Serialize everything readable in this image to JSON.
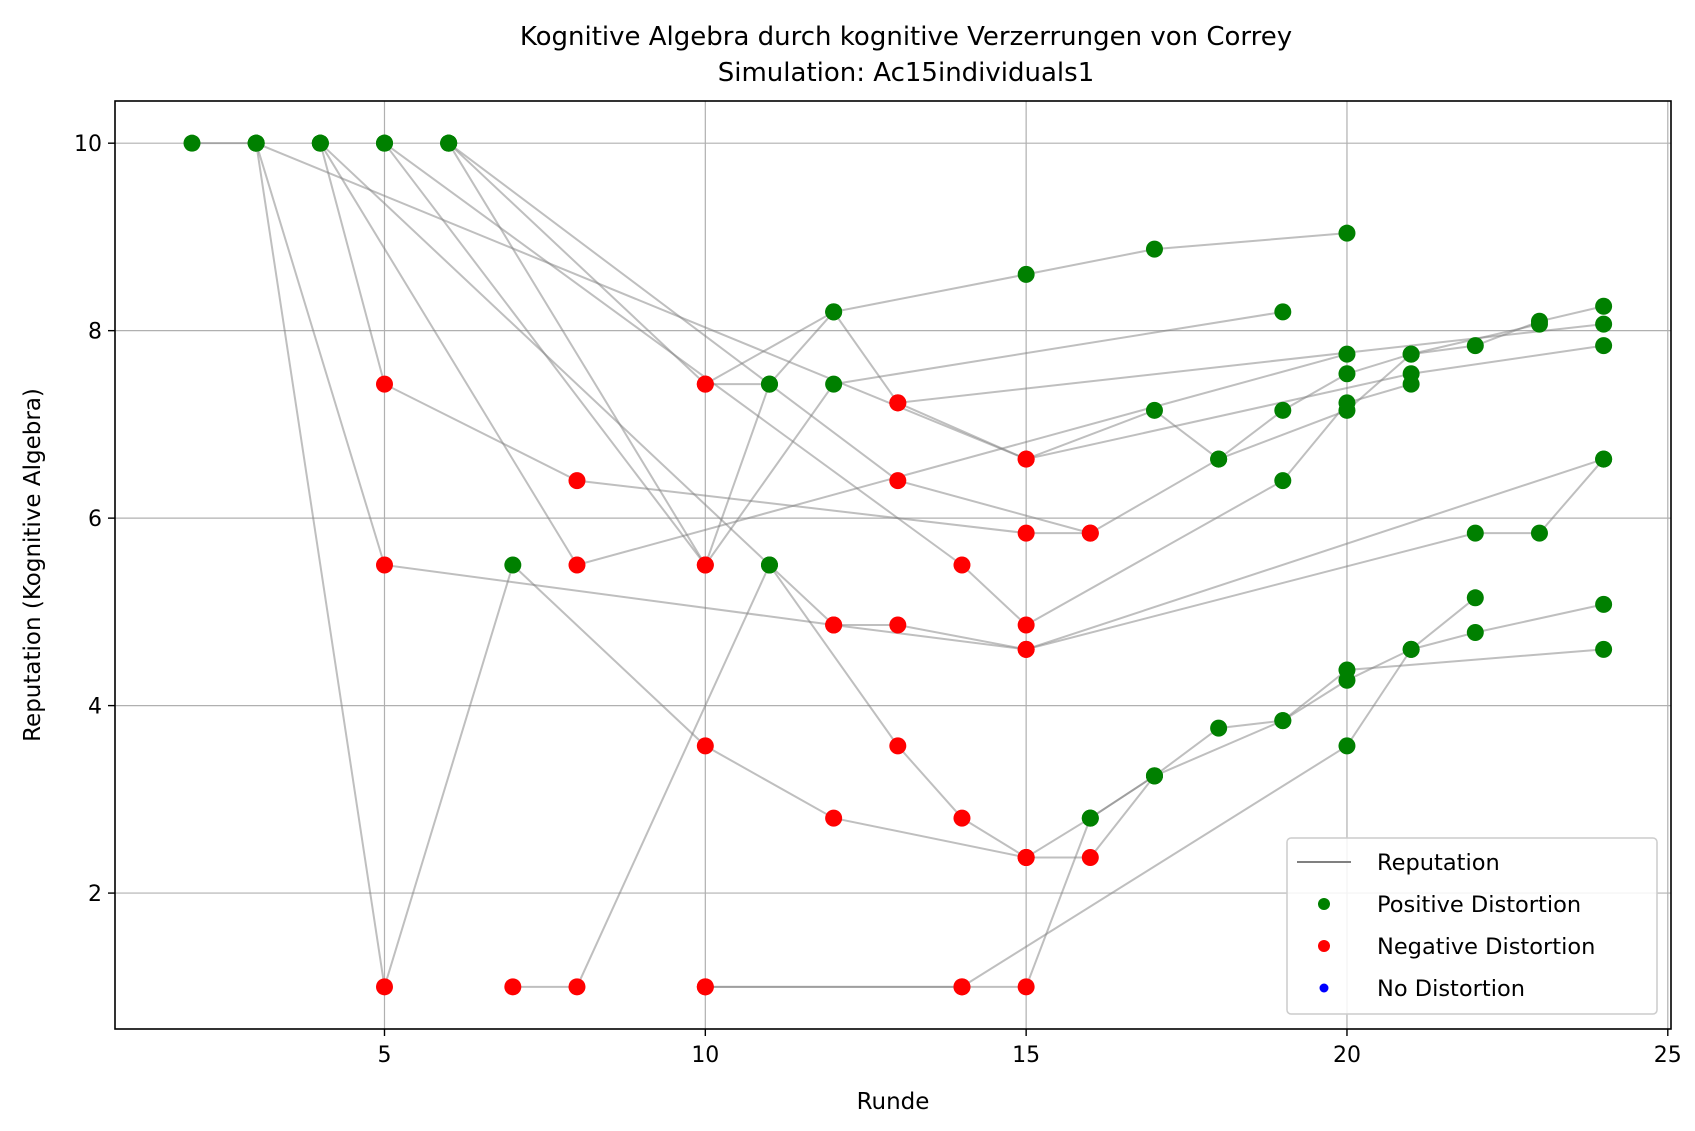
{
  "chart_data": {
    "type": "scatter",
    "title": "Kognitive Algebra durch kognitive Verzerrungen von Correy",
    "subtitle": "Simulation: Ac15individuals1",
    "xlabel": "Runde",
    "ylabel": "Reputation (Kognitive Algebra)",
    "xlim": [
      0.8,
      25.05
    ],
    "ylim": [
      0.55,
      10.45
    ],
    "xticks": [
      5,
      10,
      15,
      20,
      25
    ],
    "yticks": [
      2,
      4,
      6,
      8,
      10
    ],
    "grid": true,
    "legend_position": "lower right",
    "legend": [
      {
        "label": "Reputation",
        "kind": "line",
        "color": "#808080"
      },
      {
        "label": "Positive Distortion",
        "kind": "marker",
        "color": "#008000"
      },
      {
        "label": "Negative Distortion",
        "kind": "marker",
        "color": "#ff0000"
      },
      {
        "label": "No Distortion",
        "kind": "marker",
        "color": "#0000ff"
      }
    ],
    "colors": {
      "positive": "#008000",
      "negative": "#ff0000",
      "none": "#0000ff",
      "line": "#808080"
    },
    "series": [
      {
        "points": [
          {
            "x": 3,
            "y": 10,
            "d": "pos"
          },
          {
            "x": 5,
            "y": 1,
            "d": "neg"
          },
          {
            "x": 7,
            "y": 5.5,
            "d": "pos"
          },
          {
            "x": 10,
            "y": 3.57,
            "d": "neg"
          },
          {
            "x": 12,
            "y": 2.8,
            "d": "neg"
          },
          {
            "x": 15,
            "y": 2.38,
            "d": "neg"
          },
          {
            "x": 16,
            "y": 2.8,
            "d": "pos"
          },
          {
            "x": 17,
            "y": 3.25,
            "d": "pos"
          },
          {
            "x": 19,
            "y": 3.84,
            "d": "pos"
          },
          {
            "x": 20,
            "y": 4.27,
            "d": "pos"
          },
          {
            "x": 21,
            "y": 4.6,
            "d": "pos"
          },
          {
            "x": 22,
            "y": 4.78,
            "d": "pos"
          },
          {
            "x": 24,
            "y": 5.08,
            "d": "pos"
          }
        ]
      },
      {
        "points": [
          {
            "x": 2,
            "y": 10,
            "d": "pos"
          },
          {
            "x": 3,
            "y": 10,
            "d": "pos"
          },
          {
            "x": 5,
            "y": 5.5,
            "d": "neg"
          },
          {
            "x": 12,
            "y": 4.86,
            "d": "neg"
          },
          {
            "x": 15,
            "y": 4.6,
            "d": "neg"
          },
          {
            "x": 24,
            "y": 6.63,
            "d": "pos"
          }
        ]
      },
      {
        "points": [
          {
            "x": 4,
            "y": 10,
            "d": "pos"
          },
          {
            "x": 5,
            "y": 7.43,
            "d": "neg"
          },
          {
            "x": 8,
            "y": 6.4,
            "d": "neg"
          },
          {
            "x": 15,
            "y": 5.84,
            "d": "neg"
          },
          {
            "x": 16,
            "y": 5.84,
            "d": "neg"
          },
          {
            "x": 18,
            "y": 6.63,
            "d": "pos"
          },
          {
            "x": 19,
            "y": 7.15,
            "d": "pos"
          },
          {
            "x": 20,
            "y": 7.54,
            "d": "pos"
          },
          {
            "x": 21,
            "y": 7.75,
            "d": "pos"
          },
          {
            "x": 22,
            "y": 7.84,
            "d": "pos"
          },
          {
            "x": 23,
            "y": 8.1,
            "d": "pos"
          },
          {
            "x": 24,
            "y": 8.26,
            "d": "pos"
          }
        ]
      },
      {
        "points": [
          {
            "x": 4,
            "y": 10,
            "d": "pos"
          },
          {
            "x": 8,
            "y": 5.5,
            "d": "neg"
          },
          {
            "x": 20,
            "y": 7.75,
            "d": "pos"
          }
        ]
      },
      {
        "points": [
          {
            "x": 5,
            "y": 10,
            "d": "pos"
          },
          {
            "x": 10,
            "y": 5.5,
            "d": "neg"
          },
          {
            "x": 11,
            "y": 7.43,
            "d": "pos"
          },
          {
            "x": 12,
            "y": 8.2,
            "d": "pos"
          },
          {
            "x": 13,
            "y": 7.23,
            "d": "neg"
          },
          {
            "x": 24,
            "y": 8.07,
            "d": "pos"
          }
        ]
      },
      {
        "points": [
          {
            "x": 6,
            "y": 10,
            "d": "pos"
          },
          {
            "x": 10,
            "y": 7.43,
            "d": "neg"
          },
          {
            "x": 12,
            "y": 8.2,
            "d": "pos"
          },
          {
            "x": 15,
            "y": 8.6,
            "d": "pos"
          },
          {
            "x": 17,
            "y": 8.87,
            "d": "pos"
          },
          {
            "x": 20,
            "y": 9.04,
            "d": "pos"
          }
        ]
      },
      {
        "points": [
          {
            "x": 6,
            "y": 10,
            "d": "pos"
          },
          {
            "x": 10,
            "y": 5.5,
            "d": "neg"
          },
          {
            "x": 12,
            "y": 7.43,
            "d": "pos"
          },
          {
            "x": 19,
            "y": 8.2,
            "d": "pos"
          }
        ]
      },
      {
        "points": [
          {
            "x": 6,
            "y": 10,
            "d": "pos"
          },
          {
            "x": 13,
            "y": 6.4,
            "d": "neg"
          },
          {
            "x": 16,
            "y": 5.84,
            "d": "neg"
          }
        ]
      },
      {
        "points": [
          {
            "x": 3,
            "y": 10,
            "d": "pos"
          },
          {
            "x": 15,
            "y": 6.63,
            "d": "neg"
          },
          {
            "x": 21,
            "y": 7.54,
            "d": "pos"
          },
          {
            "x": 24,
            "y": 7.84,
            "d": "pos"
          }
        ]
      },
      {
        "points": [
          {
            "x": 4,
            "y": 10,
            "d": "pos"
          },
          {
            "x": 11,
            "y": 5.5,
            "d": "pos"
          },
          {
            "x": 13,
            "y": 3.57,
            "d": "neg"
          },
          {
            "x": 14,
            "y": 2.8,
            "d": "neg"
          },
          {
            "x": 15,
            "y": 2.38,
            "d": "neg"
          }
        ]
      },
      {
        "points": [
          {
            "x": 5,
            "y": 10,
            "d": "pos"
          },
          {
            "x": 14,
            "y": 5.5,
            "d": "neg"
          },
          {
            "x": 15,
            "y": 4.86,
            "d": "neg"
          },
          {
            "x": 19,
            "y": 6.4,
            "d": "pos"
          },
          {
            "x": 20,
            "y": 7.23,
            "d": "pos"
          },
          {
            "x": 21,
            "y": 7.43,
            "d": "pos"
          }
        ]
      },
      {
        "points": [
          {
            "x": 7,
            "y": 1,
            "d": "neg"
          },
          {
            "x": 8,
            "y": 1,
            "d": "neg"
          },
          {
            "x": 11,
            "y": 5.5,
            "d": "pos"
          },
          {
            "x": 12,
            "y": 4.86,
            "d": "neg"
          },
          {
            "x": 13,
            "y": 4.86,
            "d": "neg"
          },
          {
            "x": 15,
            "y": 4.6,
            "d": "neg"
          },
          {
            "x": 22,
            "y": 5.84,
            "d": "pos"
          },
          {
            "x": 23,
            "y": 5.84,
            "d": "pos"
          },
          {
            "x": 24,
            "y": 6.63,
            "d": "pos"
          }
        ]
      },
      {
        "points": [
          {
            "x": 10,
            "y": 1,
            "d": "neg"
          },
          {
            "x": 14,
            "y": 1,
            "d": "neg"
          },
          {
            "x": 20,
            "y": 3.57,
            "d": "pos"
          },
          {
            "x": 21,
            "y": 4.6,
            "d": "pos"
          },
          {
            "x": 22,
            "y": 5.15,
            "d": "pos"
          }
        ]
      },
      {
        "points": [
          {
            "x": 10,
            "y": 1,
            "d": "neg"
          },
          {
            "x": 14,
            "y": 1,
            "d": "neg"
          },
          {
            "x": 15,
            "y": 1,
            "d": "neg"
          },
          {
            "x": 16,
            "y": 2.8,
            "d": "pos"
          },
          {
            "x": 17,
            "y": 3.25,
            "d": "pos"
          },
          {
            "x": 18,
            "y": 3.76,
            "d": "pos"
          },
          {
            "x": 19,
            "y": 3.84,
            "d": "pos"
          },
          {
            "x": 20,
            "y": 4.38,
            "d": "pos"
          },
          {
            "x": 24,
            "y": 4.6,
            "d": "pos"
          }
        ]
      },
      {
        "points": [
          {
            "x": 15,
            "y": 2.38,
            "d": "neg"
          },
          {
            "x": 16,
            "y": 2.38,
            "d": "neg"
          },
          {
            "x": 17,
            "y": 3.25,
            "d": "pos"
          }
        ]
      },
      {
        "points": [
          {
            "x": 13,
            "y": 7.23,
            "d": "neg"
          },
          {
            "x": 15,
            "y": 6.63,
            "d": "neg"
          },
          {
            "x": 17,
            "y": 7.15,
            "d": "pos"
          },
          {
            "x": 18,
            "y": 6.63,
            "d": "pos"
          },
          {
            "x": 20,
            "y": 7.15,
            "d": "pos"
          },
          {
            "x": 21,
            "y": 7.75,
            "d": "pos"
          },
          {
            "x": 23,
            "y": 8.07,
            "d": "pos"
          }
        ]
      },
      {
        "points": [
          {
            "x": 10,
            "y": 7.43,
            "d": "neg"
          },
          {
            "x": 11,
            "y": 7.43,
            "d": "pos"
          }
        ]
      }
    ]
  }
}
